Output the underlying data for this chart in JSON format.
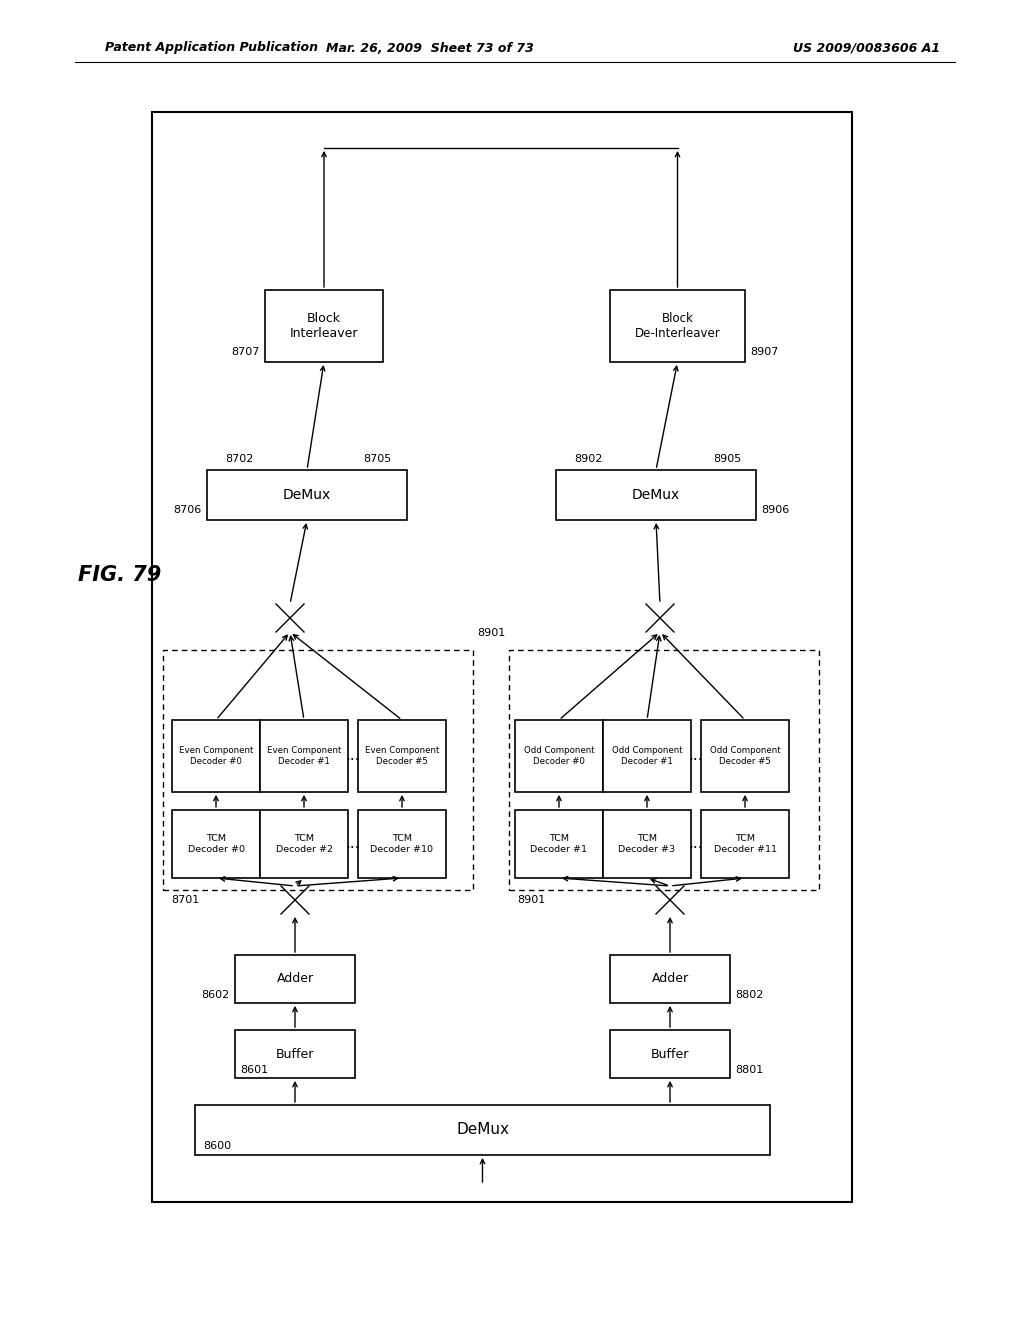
{
  "header_left": "Patent Application Publication",
  "header_mid": "Mar. 26, 2009  Sheet 73 of 73",
  "header_right": "US 2009/0083606 A1",
  "fig_label": "FIG. 79"
}
